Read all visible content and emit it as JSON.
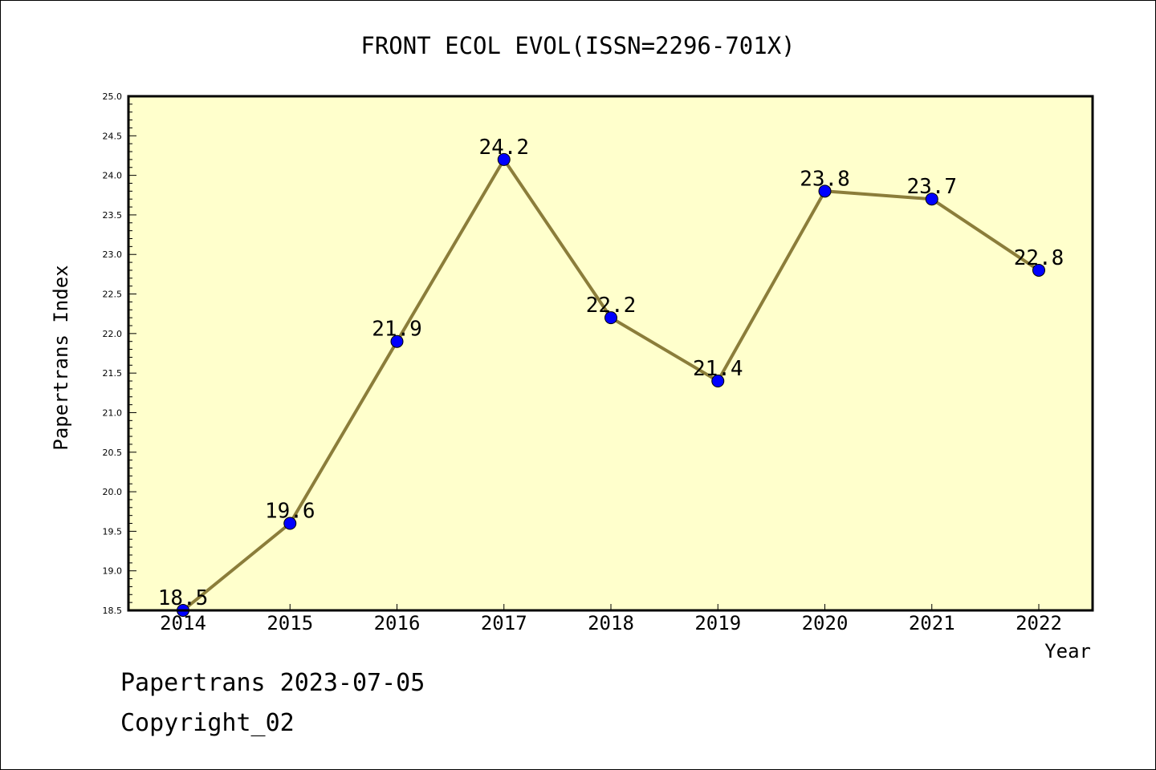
{
  "chart_data": {
    "type": "line",
    "title": "FRONT ECOL EVOL(ISSN=2296-701X)",
    "xlabel": "Year",
    "ylabel": "Papertrans Index",
    "x": [
      "2014",
      "2015",
      "2016",
      "2017",
      "2018",
      "2019",
      "2020",
      "2021",
      "2022"
    ],
    "series": [
      {
        "values": [
          18.5,
          19.6,
          21.9,
          24.2,
          22.2,
          21.4,
          23.8,
          23.7,
          22.8
        ]
      }
    ],
    "data_labels": [
      "18.5",
      "19.6",
      "21.9",
      "24.2",
      "22.2",
      "21.4",
      "23.8",
      "23.7",
      "22.8"
    ],
    "ylim": [
      18.5,
      25.0
    ],
    "yticks": [
      "18.5",
      "19.0",
      "19.5",
      "20.0",
      "20.5",
      "21.0",
      "21.5",
      "22.0",
      "22.5",
      "23.0",
      "23.5",
      "24.0",
      "24.5",
      "25.0"
    ],
    "grid": false,
    "colors": {
      "plot_background": "#ffffcc",
      "line": "#8b7d3a",
      "marker": "#0000ff"
    }
  },
  "footer": {
    "line1": "Papertrans 2023-07-05",
    "line2": "Copyright_02"
  }
}
